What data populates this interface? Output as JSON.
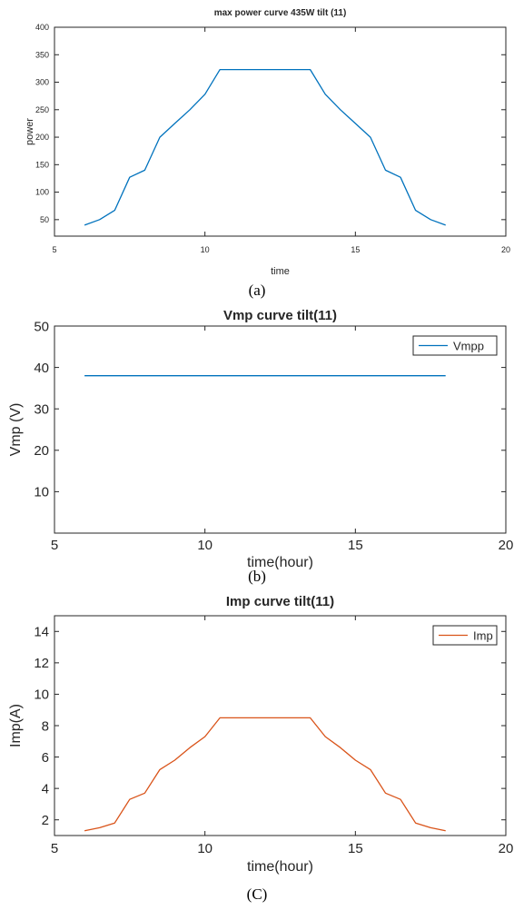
{
  "captions": [
    "(a)",
    "(b)",
    "(C)"
  ],
  "chart_data": [
    {
      "type": "line",
      "title": "max power curve 435W tilt (11)",
      "xlabel": "time",
      "ylabel": "power",
      "xlim": [
        5,
        20
      ],
      "ylim": [
        20,
        400
      ],
      "xticks": [
        5,
        10,
        15,
        20
      ],
      "yticks": [
        50,
        100,
        150,
        200,
        250,
        300,
        350,
        400
      ],
      "grid": false,
      "legend": null,
      "series": [
        {
          "color": "#0072BD",
          "x": [
            6,
            6.5,
            7,
            7.5,
            8,
            8.5,
            9,
            9.5,
            10,
            10.5,
            11,
            11.5,
            12,
            12.5,
            13,
            13.5,
            14,
            14.5,
            15,
            15.5,
            16,
            16.5,
            17,
            17.5,
            18
          ],
          "y": [
            40,
            50,
            67,
            127,
            140,
            200,
            225,
            250,
            278,
            323,
            323,
            323,
            323,
            323,
            323,
            323,
            278,
            250,
            225,
            200,
            140,
            127,
            67,
            50,
            40
          ]
        }
      ]
    },
    {
      "type": "line",
      "title": "Vmp curve tilt(11)",
      "xlabel": "time(hour)",
      "ylabel": "Vmp (V)",
      "xlim": [
        5,
        20
      ],
      "ylim": [
        0,
        50
      ],
      "xticks": [
        5,
        10,
        15,
        20
      ],
      "yticks": [
        10,
        20,
        30,
        40,
        50
      ],
      "grid": false,
      "legend": "top-right",
      "series": [
        {
          "name": "Vmpp",
          "color": "#0072BD",
          "x": [
            6,
            18
          ],
          "y": [
            38,
            38
          ]
        }
      ]
    },
    {
      "type": "line",
      "title": "Imp curve tilt(11)",
      "xlabel": "time(hour)",
      "ylabel": "Imp(A)",
      "xlim": [
        5,
        20
      ],
      "ylim": [
        1,
        15
      ],
      "xticks": [
        5,
        10,
        15,
        20
      ],
      "yticks": [
        2,
        4,
        6,
        8,
        10,
        12,
        14
      ],
      "grid": false,
      "legend": "top-right",
      "series": [
        {
          "name": "Imp",
          "color": "#D95319",
          "x": [
            6,
            6.5,
            7,
            7.5,
            8,
            8.5,
            9,
            9.5,
            10,
            10.5,
            11,
            11.5,
            12,
            12.5,
            13,
            13.5,
            14,
            14.5,
            15,
            15.5,
            16,
            16.5,
            17,
            17.5,
            18
          ],
          "y": [
            1.3,
            1.5,
            1.8,
            3.3,
            3.7,
            5.2,
            5.8,
            6.6,
            7.3,
            8.5,
            8.5,
            8.5,
            8.5,
            8.5,
            8.5,
            8.5,
            7.3,
            6.6,
            5.8,
            5.2,
            3.7,
            3.3,
            1.8,
            1.5,
            1.3
          ]
        }
      ]
    }
  ]
}
